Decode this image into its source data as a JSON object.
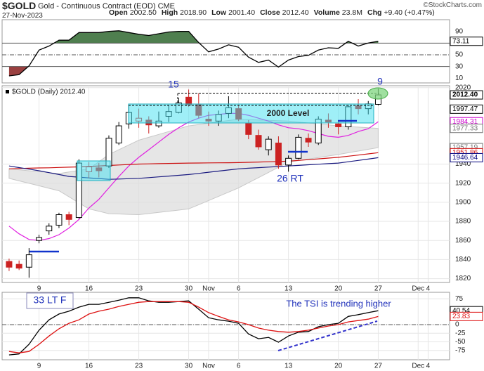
{
  "header": {
    "symbol": "$GOLD",
    "name": "Gold - Continuous Contract (EOD) CME",
    "date": "27-Nov-2023",
    "copyright": "©StockCharts.com",
    "stats": [
      {
        "label": "Open",
        "value": "2002.50"
      },
      {
        "label": "High",
        "value": "2018.90"
      },
      {
        "label": "Low",
        "value": "2001.40"
      },
      {
        "label": "Close",
        "value": "2012.40"
      },
      {
        "label": "Volume",
        "value": "23.8M"
      },
      {
        "label": "Chg",
        "value": "+9.40 (+0.47%)"
      }
    ]
  },
  "chart_data": [
    {
      "type": "line",
      "color": "#000000",
      "values": [
        14,
        16,
        31,
        58,
        65,
        75,
        75,
        88,
        88,
        88,
        90,
        91,
        88,
        85,
        83,
        86,
        89,
        90,
        90,
        71,
        55,
        60,
        67,
        63,
        46,
        37,
        41,
        29,
        41,
        47,
        49,
        58,
        62,
        61,
        73,
        65,
        70,
        73.11
      ],
      "xlim": [
        -0.7,
        44.15
      ],
      "ylim": [
        2,
        110
      ],
      "yticks": [
        90,
        50,
        30,
        10
      ],
      "midline": 50,
      "overbought": {
        "level": 70,
        "color": "#4f7f4f"
      },
      "oversold": {
        "level": 30,
        "color": "#9a4040"
      },
      "last_value_tags": true
    },
    {
      "type": "candlestick",
      "legend": "$GOLD (Daily) 2012.40",
      "xlim": [
        -0.7,
        44.15
      ],
      "ylim": [
        1816,
        2022
      ],
      "grid": true,
      "yticks": [
        1820,
        1840,
        1860,
        1880,
        1900,
        1920,
        1940,
        2020
      ],
      "xticks": [
        {
          "value": 3,
          "label": "9"
        },
        {
          "value": 8,
          "label": "16"
        },
        {
          "value": 13,
          "label": "23"
        },
        {
          "value": 18,
          "label": "30"
        },
        {
          "value": 20,
          "label": "Nov"
        },
        {
          "value": 23,
          "label": "6"
        },
        {
          "value": 28,
          "label": "13"
        },
        {
          "value": 33,
          "label": "20"
        },
        {
          "value": 37,
          "label": "27"
        },
        {
          "value": 41,
          "label": "Dec"
        },
        {
          "value": 42,
          "label": "4"
        }
      ],
      "open": [
        1838,
        1835,
        1832,
        1860,
        1870,
        1876,
        1887,
        1884,
        1932,
        1936,
        1938,
        1962,
        1982,
        1985,
        1986,
        1980,
        1990,
        1994,
        2010,
        2002,
        1987,
        1985,
        1993,
        1998,
        1983,
        1970,
        1955,
        1962,
        1939,
        1946,
        1967,
        1962,
        1986,
        1982,
        1979,
        2001,
        1998,
        2002.5
      ],
      "high": [
        1841,
        1839,
        1852,
        1866,
        1878,
        1889,
        1890,
        1945,
        1942,
        1941,
        1970,
        1984,
        2001,
        1998,
        1990,
        1995,
        2002,
        2009,
        2018,
        2014,
        1995,
        1996,
        2011,
        2002,
        1986,
        1976,
        1969,
        1969,
        1949,
        1971,
        1972,
        1990,
        1993,
        1985,
        2002,
        2008,
        2006,
        2018.9
      ],
      "low": [
        1828,
        1829,
        1821,
        1857,
        1866,
        1873,
        1876,
        1883,
        1925,
        1926,
        1936,
        1960,
        1977,
        1978,
        1972,
        1978,
        1984,
        1993,
        2000,
        1988,
        1980,
        1980,
        1988,
        1985,
        1966,
        1955,
        1949,
        1935,
        1932,
        1945,
        1958,
        1960,
        1978,
        1971,
        1976,
        1992,
        1992,
        2001.4
      ],
      "close": [
        1832,
        1831,
        1845,
        1863,
        1875,
        1887,
        1882,
        1941,
        1937,
        1933,
        1967,
        1980,
        1994,
        1988,
        1981,
        1985,
        1995,
        2004,
        2002,
        1991,
        1985,
        1992,
        1999,
        1987,
        1971,
        1958,
        1966,
        1939,
        1946,
        1968,
        1963,
        1987,
        1984,
        1979,
        2000,
        1998,
        2003,
        2012.4
      ],
      "band": {
        "color": "#dcdcdc",
        "upper": [
          1935,
          1934,
          1933,
          1932,
          1931,
          1930,
          1931.7,
          1933.3,
          1935,
          1942.5,
          1950,
          1955,
          1960,
          1965,
          1968,
          1971,
          1974,
          1977,
          1980,
          1981.4,
          1982.8,
          1984.2,
          1985.6,
          1987,
          1986.6,
          1986.2,
          1985.8,
          1985.4,
          1985,
          1984,
          1983,
          1982,
          1981,
          1980,
          1979.3,
          1978.7,
          1978,
          1977.33
        ],
        "lower": [
          1925,
          1922.4,
          1919.8,
          1917.2,
          1914.6,
          1912,
          1905.7,
          1899.3,
          1893,
          1890.5,
          1888,
          1887.7,
          1887.3,
          1887,
          1888.2,
          1889.4,
          1890.6,
          1891.8,
          1893,
          1897.4,
          1901.8,
          1906.2,
          1910.6,
          1915,
          1920.4,
          1925.8,
          1931.2,
          1936.6,
          1942,
          1943.6,
          1945.2,
          1946.8,
          1948.4,
          1950,
          1951.8,
          1953.6,
          1955.4,
          1957.19
        ]
      },
      "overlays": [
        {
          "color": "#e020e0",
          "values": [
            1875,
            1867,
            1861,
            1860,
            1862,
            1866,
            1873,
            1882,
            1894,
            1903,
            1915,
            1927,
            1938,
            1947,
            1955,
            1963,
            1971,
            1978,
            1984,
            1988,
            1991,
            1992,
            1993,
            1993,
            1991,
            1988,
            1985,
            1981,
            1978,
            1977,
            1975,
            1972,
            1969,
            1968,
            1970,
            1974,
            1977,
            1984.31
          ]
        },
        {
          "color": "#cc1111",
          "values": [
            1935,
            1935.3,
            1935.6,
            1935.9,
            1936.1,
            1936.4,
            1936.7,
            1937,
            1937.5,
            1938,
            1938.5,
            1939,
            1939.5,
            1940,
            1940.2,
            1940.4,
            1940.6,
            1940.8,
            1941,
            1941.1,
            1941.2,
            1941.3,
            1941.4,
            1941.5,
            1941.8,
            1942.1,
            1942.4,
            1942.7,
            1943,
            1943.8,
            1944.6,
            1945.4,
            1946.2,
            1947,
            1948.2,
            1949.4,
            1950.6,
            1951.86
          ]
        },
        {
          "color": "#1a1a80",
          "values": [
            1938,
            1936.3,
            1934.7,
            1933,
            1931,
            1929,
            1927,
            1926.3,
            1925.5,
            1924.8,
            1924,
            1924.3,
            1924.7,
            1925,
            1925.8,
            1926.6,
            1927.4,
            1928.2,
            1929,
            1930.2,
            1931.4,
            1932.6,
            1933.8,
            1935,
            1935.6,
            1936.2,
            1936.8,
            1937.4,
            1938,
            1938.6,
            1939.2,
            1939.8,
            1940.4,
            1941,
            1942.4,
            1943.8,
            1945.2,
            1946.64
          ]
        }
      ],
      "price_tags": [
        {
          "value": 2012.4,
          "label": "2012.40",
          "color": "#000000"
        },
        {
          "value": 1997.47,
          "label": "1997.47",
          "color": "#000000"
        },
        {
          "value": 1984.31,
          "label": "1984.31",
          "color": "#cc00cc"
        },
        {
          "value": 1977.33,
          "label": "1977.33",
          "color": "#777777"
        },
        {
          "value": 1957.19,
          "label": "1957.19",
          "color": "#777777"
        },
        {
          "value": 1951.86,
          "label": "1951.86",
          "color": "#cc0000"
        },
        {
          "value": 1946.64,
          "label": "1946.64",
          "color": "#000080"
        }
      ],
      "annotations": [
        "15",
        "9",
        "2000 Level",
        "26 RT",
        "33 LT F"
      ]
    },
    {
      "type": "line",
      "xlim": [
        -0.7,
        44.15
      ],
      "ylim": [
        -102,
        94
      ],
      "grid": true,
      "yticks": [
        75,
        0,
        -25,
        -50,
        -75
      ],
      "midline": 0,
      "xticks": [
        {
          "value": 3,
          "label": "9"
        },
        {
          "value": 8,
          "label": "16"
        },
        {
          "value": 13,
          "label": "23"
        },
        {
          "value": 18,
          "label": "30"
        },
        {
          "value": 20,
          "label": "Nov"
        },
        {
          "value": 23,
          "label": "6"
        },
        {
          "value": 28,
          "label": "13"
        },
        {
          "value": 33,
          "label": "20"
        },
        {
          "value": 37,
          "label": "27"
        },
        {
          "value": 41,
          "label": "Dec"
        },
        {
          "value": 42,
          "label": "4"
        }
      ],
      "series": [
        {
          "color": "#000000",
          "values": [
            -88,
            -85,
            -57,
            -16,
            14,
            31,
            39,
            51,
            59,
            59,
            65,
            71,
            78,
            78,
            69,
            65,
            65,
            67,
            69,
            45,
            20,
            14,
            10,
            4,
            -27,
            -41,
            -37,
            -51,
            -33,
            -22,
            -20,
            -6,
            0,
            4,
            24,
            29,
            35,
            40.54
          ]
        },
        {
          "color": "#dd1111",
          "values": [
            -78,
            -82,
            -78,
            -57,
            -33,
            -12,
            4,
            14,
            31,
            39,
            45,
            53,
            59,
            65,
            67,
            67,
            67,
            67,
            65,
            51,
            35,
            24,
            14,
            8,
            0,
            -10,
            -16,
            -20,
            -22,
            -20,
            -16,
            -10,
            -4,
            0,
            8,
            12,
            16,
            23.83
          ]
        }
      ],
      "last_value_tags": true,
      "annotation": "The TSI is trending higher"
    }
  ]
}
